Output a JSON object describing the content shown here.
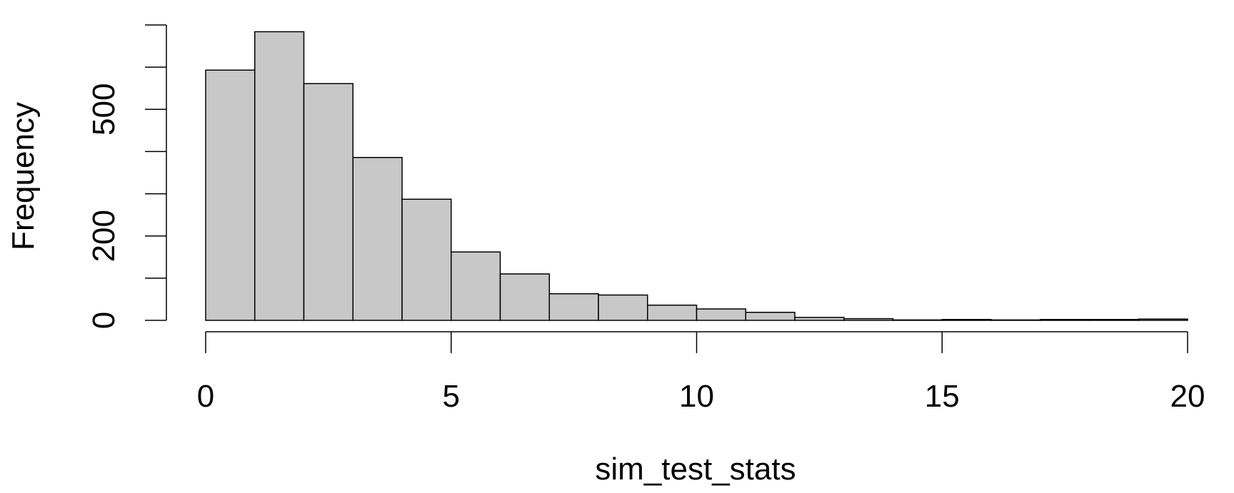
{
  "chart_data": {
    "type": "bar",
    "title": "",
    "xlabel": "sim_test_stats",
    "ylabel": "Frequency",
    "bin_edges": [
      0,
      1,
      2,
      3,
      4,
      5,
      6,
      7,
      8,
      9,
      10,
      11,
      12,
      13,
      14,
      15,
      16,
      17,
      18,
      19,
      20
    ],
    "values": [
      593,
      684,
      561,
      386,
      287,
      162,
      110,
      63,
      60,
      36,
      27,
      19,
      7,
      4,
      1,
      2,
      1,
      2,
      2,
      3
    ],
    "xlim": [
      0,
      20
    ],
    "ylim": [
      0,
      700
    ],
    "xticks": [
      0,
      5,
      10,
      15,
      20
    ],
    "xtick_labels": [
      "0",
      "5",
      "10",
      "15",
      "20"
    ],
    "yticks": [
      0,
      100,
      200,
      300,
      400,
      500,
      600,
      700
    ],
    "ytick_labels": [
      "0",
      "",
      "200",
      "",
      "",
      "500",
      "",
      ""
    ],
    "bar_fill": "#c8c8c8",
    "bar_stroke": "#000000",
    "grid": false,
    "legend": "none"
  }
}
